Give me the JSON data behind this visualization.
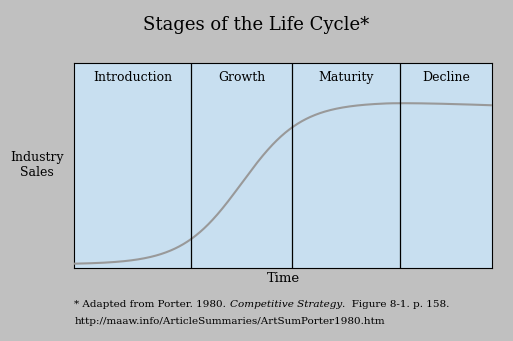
{
  "title": "Stages of the Life Cycle*",
  "title_fontsize": 13,
  "stages": [
    "Introduction",
    "Growth",
    "Maturity",
    "Decline"
  ],
  "stage_boundaries": [
    0.0,
    0.28,
    0.52,
    0.78,
    1.0
  ],
  "xlabel": "Time",
  "ylabel": "Industry\nSales",
  "background_color": "#c0c0c0",
  "plot_bg_color": "#c8dff0",
  "curve_color": "#999999",
  "divider_color": "#000000",
  "border_color": "#000000",
  "footnote_line1": "* Adapted from Porter. 1980. ",
  "footnote_italic": "Competitive Strategy",
  "footnote_line1_end": ".  Figure 8-1. p. 158.",
  "footnote_line2": "http://maaw.info/ArticleSummaries/ArtSumPorter1980.htm",
  "footnote_fontsize": 7.5,
  "stage_label_fontsize": 9,
  "axis_label_fontsize": 9,
  "xlabel_fontsize": 9.5
}
